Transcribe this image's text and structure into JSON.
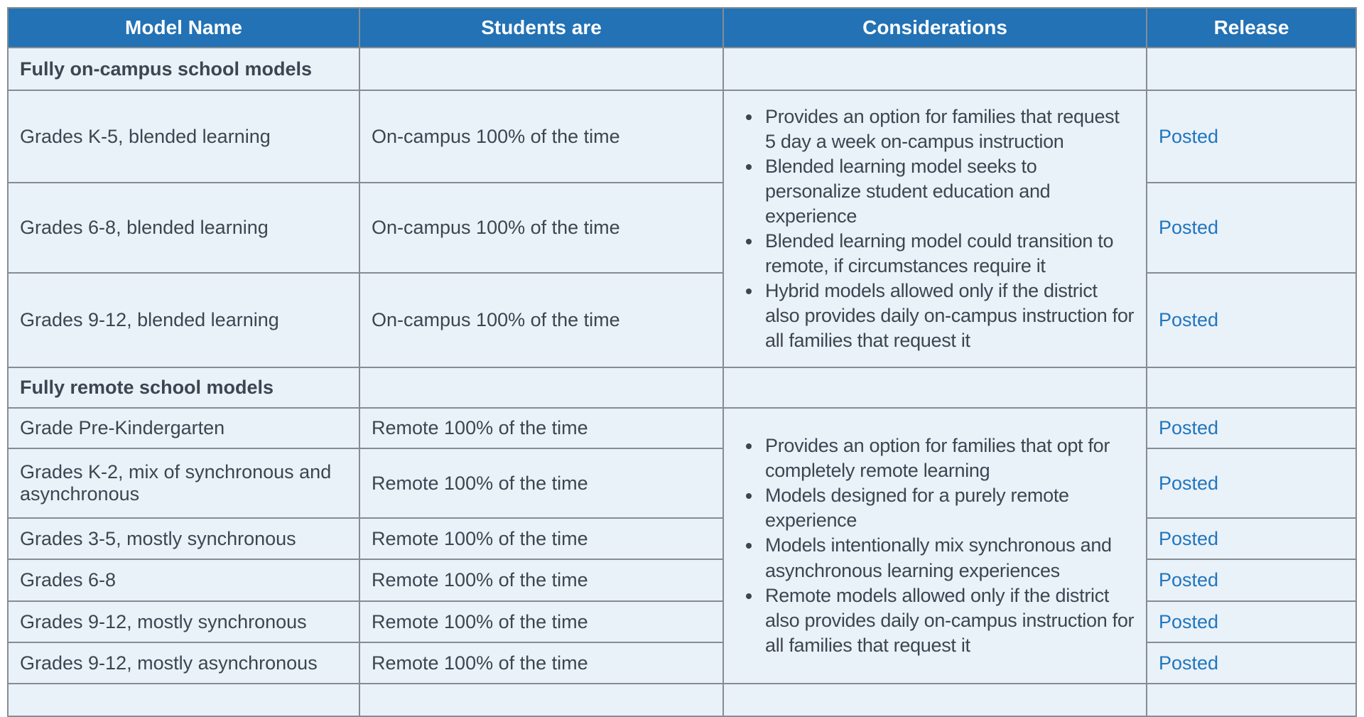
{
  "table": {
    "columns": [
      "Model Name",
      "Students are",
      "Considerations",
      "Release"
    ],
    "sections": [
      {
        "title": "Fully on-campus school models",
        "rows": [
          {
            "model": "Grades K-5, blended learning",
            "students": "On-campus 100% of the time",
            "release": "Posted"
          },
          {
            "model": "Grades 6-8, blended learning",
            "students": "On-campus 100% of the time",
            "release": "Posted"
          },
          {
            "model": "Grades 9-12, blended learning",
            "students": "On-campus 100% of the time",
            "release": "Posted"
          }
        ],
        "considerations": [
          "Provides an option for families that request 5 day a week on-campus instruction",
          "Blended learning model seeks to personalize student education and experience",
          "Blended learning model could transition to remote, if circumstances require it",
          "Hybrid models allowed only if the district also provides daily on-campus instruction for all families that request it"
        ]
      },
      {
        "title": "Fully remote school models",
        "rows": [
          {
            "model": "Grade Pre-Kindergarten",
            "students": "Remote 100% of the time",
            "release": "Posted"
          },
          {
            "model": "Grades K-2, mix of synchronous and asynchronous",
            "students": "Remote 100% of the time",
            "release": "Posted"
          },
          {
            "model": "Grades 3-5, mostly synchronous",
            "students": "Remote 100% of the time",
            "release": "Posted"
          },
          {
            "model": "Grades 6-8",
            "students": "Remote 100% of the time",
            "release": "Posted"
          },
          {
            "model": "Grades 9-12, mostly synchronous",
            "students": "Remote 100% of the time",
            "release": "Posted"
          },
          {
            "model": "Grades 9-12, mostly asynchronous",
            "students": "Remote 100% of the time",
            "release": "Posted"
          }
        ],
        "considerations": [
          "Provides an option for families that opt for completely remote learning",
          "Models designed for a purely remote experience",
          "Models intentionally mix synchronous and asynchronous learning experiences",
          "Remote models allowed only if the district also provides daily on-campus instruction for all families that request it"
        ]
      }
    ],
    "colors": {
      "header_bg": "#2272b5",
      "header_text": "#ffffff",
      "row_bg": "#e9f1f9",
      "border": "#868c92",
      "body_text": "#3d4551",
      "link": "#2176bd"
    }
  }
}
